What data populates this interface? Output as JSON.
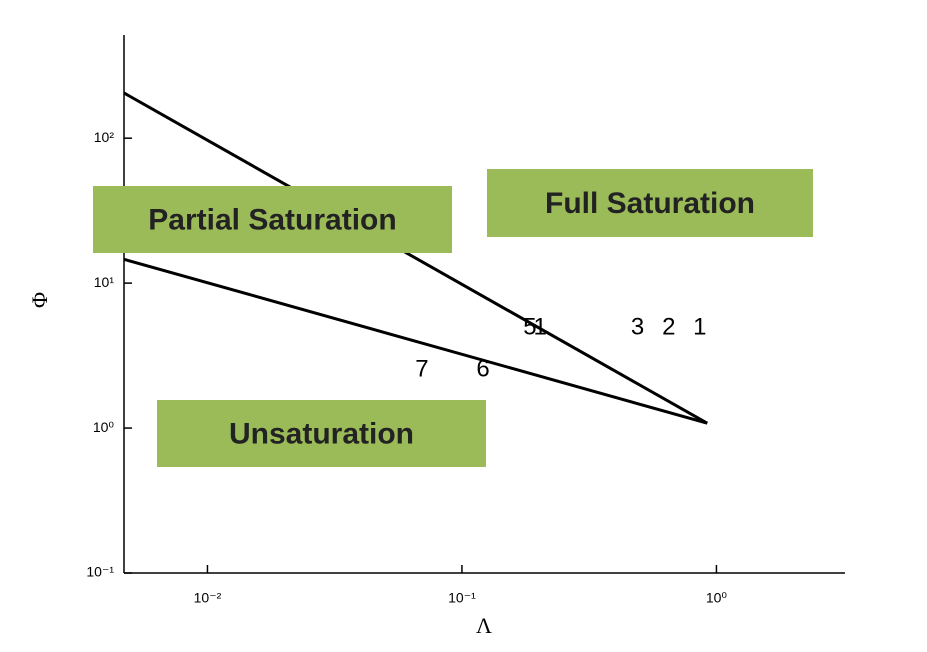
{
  "chart_data": {
    "type": "line",
    "xlabel": "Λ",
    "ylabel": "Φ",
    "xlog": true,
    "ylog": true,
    "xlim": [
      0.0047,
      3.2
    ],
    "ylim": [
      0.1,
      515
    ],
    "xticks": [
      {
        "value": 0.01,
        "label": "10⁻²"
      },
      {
        "value": 0.1,
        "label": "10⁻¹"
      },
      {
        "value": 1,
        "label": "10⁰"
      }
    ],
    "yticks": [
      {
        "value": 0.1,
        "label": "10⁻¹"
      },
      {
        "value": 1,
        "label": "10⁰"
      },
      {
        "value": 10,
        "label": "10¹"
      },
      {
        "value": 100,
        "label": "10²"
      }
    ],
    "series": [
      {
        "color": "#000000",
        "x": [
          0.0047,
          0.92
        ],
        "values": [
          205,
          1.08
        ]
      },
      {
        "color": "#000000",
        "x": [
          0.0047,
          0.92
        ],
        "values": [
          14.6,
          1.08
        ]
      }
    ],
    "points": [
      {
        "label": "5",
        "x": 0.185,
        "y": 4.9
      },
      {
        "label": "1",
        "x": 0.203,
        "y": 4.9
      },
      {
        "label": "3",
        "x": 0.49,
        "y": 4.9
      },
      {
        "label": "2",
        "x": 0.65,
        "y": 4.9
      },
      {
        "label": "1",
        "x": 0.86,
        "y": 4.9
      },
      {
        "label": "7",
        "x": 0.0696,
        "y": 2.5
      },
      {
        "label": "6",
        "x": 0.121,
        "y": 2.5
      }
    ],
    "regions": [
      "Partial Saturation",
      "Full Saturation",
      "Unsaturation"
    ],
    "region_color": "#9bbb59"
  }
}
